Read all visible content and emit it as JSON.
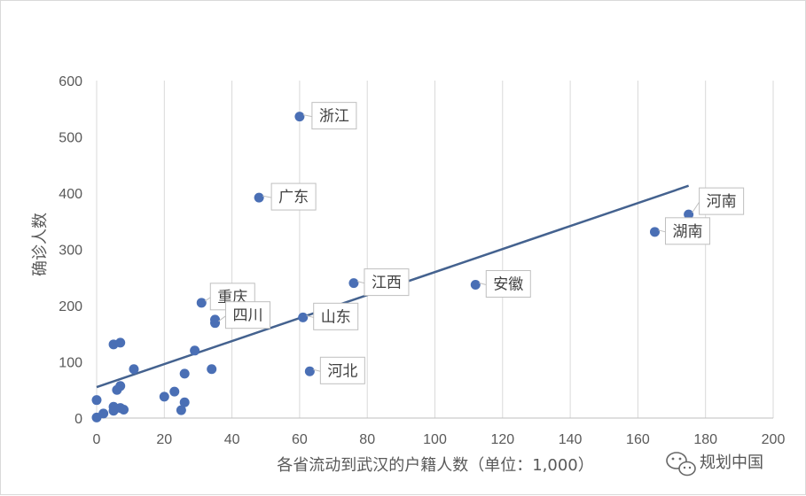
{
  "chart_data": {
    "type": "scatter",
    "title": "",
    "xlabel": "各省流动到武汉的户籍人数（单位：1,000）",
    "ylabel": "确诊人数",
    "xlim": [
      0,
      200
    ],
    "ylim": [
      0,
      600
    ],
    "x_ticks": [
      0,
      20,
      40,
      60,
      80,
      100,
      120,
      140,
      160,
      180,
      200
    ],
    "y_ticks": [
      0,
      100,
      200,
      300,
      400,
      500,
      600
    ],
    "x_tick_labels": [
      "0",
      "20",
      "40",
      "60",
      "80",
      "100",
      "120",
      "140",
      "160",
      "180",
      "200"
    ],
    "y_tick_labels": [
      "0",
      "100",
      "200",
      "300",
      "400",
      "500",
      "600"
    ],
    "grid": "vertical",
    "marker_color": "#4a6fb5",
    "trendline": {
      "x": [
        0,
        175
      ],
      "y": [
        55,
        413
      ],
      "color": "#44628f"
    },
    "points": [
      {
        "x": 60,
        "y": 536,
        "label": "浙江"
      },
      {
        "x": 48,
        "y": 392,
        "label": "广东"
      },
      {
        "x": 175,
        "y": 362,
        "label": "河南"
      },
      {
        "x": 165,
        "y": 331,
        "label": "湖南"
      },
      {
        "x": 76,
        "y": 240,
        "label": "江西"
      },
      {
        "x": 112,
        "y": 237,
        "label": "安徽"
      },
      {
        "x": 31,
        "y": 205,
        "label": "重庆"
      },
      {
        "x": 35,
        "y": 169,
        "label": "四川"
      },
      {
        "x": 61,
        "y": 179,
        "label": "山东"
      },
      {
        "x": 63,
        "y": 83,
        "label": "河北"
      },
      {
        "x": 29,
        "y": 120,
        "label": ""
      },
      {
        "x": 35,
        "y": 175,
        "label": ""
      },
      {
        "x": 34,
        "y": 87,
        "label": ""
      },
      {
        "x": 26,
        "y": 79,
        "label": ""
      },
      {
        "x": 11,
        "y": 87,
        "label": ""
      },
      {
        "x": 5,
        "y": 131,
        "label": ""
      },
      {
        "x": 7,
        "y": 134,
        "label": ""
      },
      {
        "x": 7,
        "y": 57,
        "label": ""
      },
      {
        "x": 6,
        "y": 50,
        "label": ""
      },
      {
        "x": 20,
        "y": 38,
        "label": ""
      },
      {
        "x": 23,
        "y": 47,
        "label": ""
      },
      {
        "x": 26,
        "y": 28,
        "label": ""
      },
      {
        "x": 25,
        "y": 14,
        "label": ""
      },
      {
        "x": 5,
        "y": 20,
        "label": ""
      },
      {
        "x": 5,
        "y": 13,
        "label": ""
      },
      {
        "x": 7,
        "y": 18,
        "label": ""
      },
      {
        "x": 8,
        "y": 15,
        "label": ""
      },
      {
        "x": 0,
        "y": 32,
        "label": ""
      },
      {
        "x": 2,
        "y": 8,
        "label": ""
      },
      {
        "x": 0,
        "y": 1,
        "label": ""
      }
    ]
  },
  "watermark": {
    "text": "规划中国",
    "icon": "wechat-icon"
  }
}
